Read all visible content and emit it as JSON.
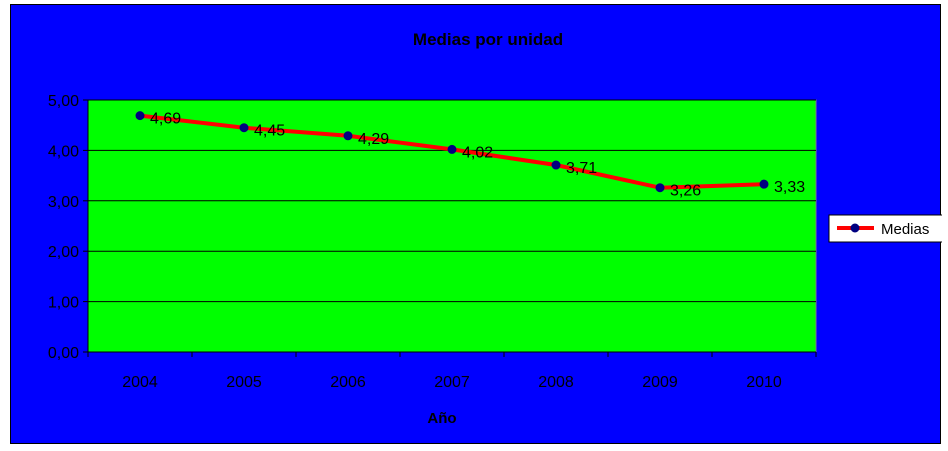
{
  "colors": {
    "background": "#0000ff",
    "plot_area": "#00ff00",
    "line": "#ff0000",
    "marker": "#000080",
    "gridline": "#000000"
  },
  "chart_data": {
    "type": "line",
    "title": "Medias por unidad",
    "xlabel": "Año",
    "ylabel": "",
    "categories": [
      "2004",
      "2005",
      "2006",
      "2007",
      "2008",
      "2009",
      "2010"
    ],
    "series": [
      {
        "name": "Medias",
        "values": [
          4.69,
          4.45,
          4.29,
          4.02,
          3.71,
          3.26,
          3.33
        ],
        "data_labels": [
          "4,69",
          "4,45",
          "4,29",
          "4,02",
          "3,71",
          "3,26",
          "3,33"
        ]
      }
    ],
    "ylim": [
      0,
      5
    ],
    "yticks": [
      "0,00",
      "1,00",
      "2,00",
      "3,00",
      "4,00",
      "5,00"
    ],
    "grid": true,
    "legend_position": "right"
  }
}
